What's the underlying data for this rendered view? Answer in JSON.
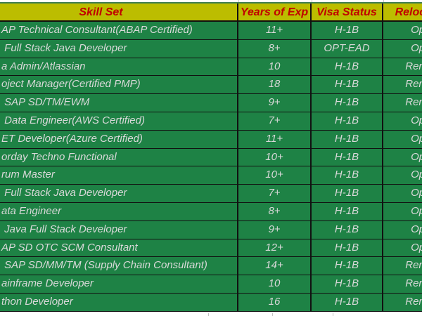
{
  "table": {
    "headers": {
      "skill": "Skill Set",
      "years": "Years of Exp",
      "visa": "Visa Status",
      "reloc": "Relocation"
    },
    "rows": [
      {
        "skill": "AP Technical Consultant(ABAP Certified)",
        "years": "11+",
        "visa": "H-1B",
        "reloc": "Open"
      },
      {
        "skill": " Full Stack Java Developer",
        "years": "8+",
        "visa": "OPT-EAD",
        "reloc": "Open"
      },
      {
        "skill": "a Admin/Atlassian",
        "years": "10",
        "visa": "H-1B",
        "reloc": "Remote"
      },
      {
        "skill": "oject Manager(Certified PMP)",
        "years": "18",
        "visa": "H-1B",
        "reloc": "Remote"
      },
      {
        "skill": " SAP SD/TM/EWM",
        "years": "9+",
        "visa": "H-1B",
        "reloc": "Remote"
      },
      {
        "skill": " Data Engineer(AWS Certified)",
        "years": "7+",
        "visa": "H-1B",
        "reloc": "Open"
      },
      {
        "skill": "ET Developer(Azure Certified)",
        "years": "11+",
        "visa": "H-1B",
        "reloc": "Open"
      },
      {
        "skill": "orday Techno Functional",
        "years": "10+",
        "visa": "H-1B",
        "reloc": "Open"
      },
      {
        "skill": "rum Master",
        "years": "10+",
        "visa": "H-1B",
        "reloc": "Open"
      },
      {
        "skill": " Full Stack Java Developer",
        "years": "7+",
        "visa": "H-1B",
        "reloc": "Open"
      },
      {
        "skill": "ata Engineer",
        "years": "8+",
        "visa": "H-1B",
        "reloc": "Open"
      },
      {
        "skill": " Java Full Stack Developer",
        "years": "9+",
        "visa": "H-1B",
        "reloc": "Open"
      },
      {
        "skill": "AP SD OTC SCM Consultant",
        "years": "12+",
        "visa": "H-1B",
        "reloc": "Open"
      },
      {
        "skill": " SAP SD/MM/TM (Supply Chain Consultant)",
        "years": "14+",
        "visa": "H-1B",
        "reloc": "Remote"
      },
      {
        "skill": "ainframe Developer",
        "years": "10",
        "visa": "H-1B",
        "reloc": "Remote"
      },
      {
        "skill": "thon Developer",
        "years": "16",
        "visa": "H-1B",
        "reloc": "Remote"
      }
    ]
  },
  "colors": {
    "header_bg": "#bcbd00",
    "header_text": "#c00000",
    "row_bg": "#1e8245",
    "row_text": "#d9d9d9",
    "border": "#111111",
    "accent_line": "#3e7d51"
  }
}
